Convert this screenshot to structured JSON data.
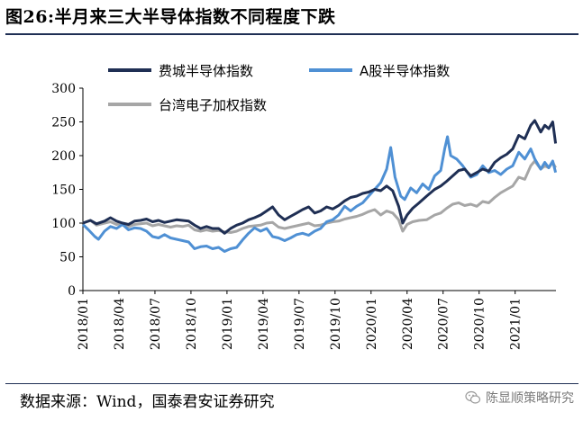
{
  "title": "图26:半月来三大半导体指数不同程度下跌",
  "source": "数据来源：Wind，国泰君安证券研究",
  "watermark": "陈显顺策略研究",
  "chart_data": {
    "type": "line",
    "title": "图26:半月来三大半导体指数不同程度下跌",
    "xlabel": "",
    "ylabel": "",
    "ylim": [
      0,
      300
    ],
    "yticks": [
      0,
      50,
      100,
      150,
      200,
      250,
      300
    ],
    "xlim": [
      "2018-01",
      "2021-04.5"
    ],
    "xticks": [
      "2018/01",
      "2018/04",
      "2018/07",
      "2018/10",
      "2019/01",
      "2019/04",
      "2019/07",
      "2019/10",
      "2020/01",
      "2020/04",
      "2020/07",
      "2020/10",
      "2021/01"
    ],
    "grid": false,
    "legend": "top",
    "series": [
      {
        "name": "费城半导体指数",
        "color": "#1f2f54",
        "points": [
          [
            "2018-01-01",
            100
          ],
          [
            "2018-01-20",
            104
          ],
          [
            "2018-02-05",
            99
          ],
          [
            "2018-02-25",
            103
          ],
          [
            "2018-03-10",
            108
          ],
          [
            "2018-03-25",
            103
          ],
          [
            "2018-04-10",
            100
          ],
          [
            "2018-04-25",
            98
          ],
          [
            "2018-05-10",
            103
          ],
          [
            "2018-05-25",
            104
          ],
          [
            "2018-06-10",
            106
          ],
          [
            "2018-06-25",
            102
          ],
          [
            "2018-07-10",
            104
          ],
          [
            "2018-07-25",
            101
          ],
          [
            "2018-08-10",
            103
          ],
          [
            "2018-08-25",
            105
          ],
          [
            "2018-09-10",
            104
          ],
          [
            "2018-09-25",
            103
          ],
          [
            "2018-10-10",
            97
          ],
          [
            "2018-10-25",
            92
          ],
          [
            "2018-11-10",
            95
          ],
          [
            "2018-11-25",
            92
          ],
          [
            "2018-12-10",
            92
          ],
          [
            "2018-12-25",
            85
          ],
          [
            "2019-01-10",
            92
          ],
          [
            "2019-01-25",
            97
          ],
          [
            "2019-02-10",
            100
          ],
          [
            "2019-02-25",
            105
          ],
          [
            "2019-03-10",
            108
          ],
          [
            "2019-03-25",
            112
          ],
          [
            "2019-04-10",
            118
          ],
          [
            "2019-04-25",
            124
          ],
          [
            "2019-05-10",
            112
          ],
          [
            "2019-05-25",
            105
          ],
          [
            "2019-06-10",
            110
          ],
          [
            "2019-06-25",
            115
          ],
          [
            "2019-07-10",
            120
          ],
          [
            "2019-07-25",
            124
          ],
          [
            "2019-08-10",
            115
          ],
          [
            "2019-08-25",
            118
          ],
          [
            "2019-09-10",
            124
          ],
          [
            "2019-09-25",
            121
          ],
          [
            "2019-10-10",
            126
          ],
          [
            "2019-10-25",
            133
          ],
          [
            "2019-11-10",
            138
          ],
          [
            "2019-11-25",
            140
          ],
          [
            "2019-12-10",
            144
          ],
          [
            "2019-12-25",
            146
          ],
          [
            "2020-01-10",
            150
          ],
          [
            "2020-01-25",
            148
          ],
          [
            "2020-02-10",
            155
          ],
          [
            "2020-02-25",
            148
          ],
          [
            "2020-03-10",
            125
          ],
          [
            "2020-03-20",
            100
          ],
          [
            "2020-04-01",
            112
          ],
          [
            "2020-04-15",
            122
          ],
          [
            "2020-05-01",
            130
          ],
          [
            "2020-05-20",
            140
          ],
          [
            "2020-06-10",
            150
          ],
          [
            "2020-06-25",
            155
          ],
          [
            "2020-07-10",
            162
          ],
          [
            "2020-07-25",
            170
          ],
          [
            "2020-08-10",
            178
          ],
          [
            "2020-08-25",
            180
          ],
          [
            "2020-09-10",
            170
          ],
          [
            "2020-09-25",
            175
          ],
          [
            "2020-10-10",
            180
          ],
          [
            "2020-10-25",
            177
          ],
          [
            "2020-11-10",
            190
          ],
          [
            "2020-11-25",
            197
          ],
          [
            "2020-12-10",
            202
          ],
          [
            "2020-12-25",
            210
          ],
          [
            "2021-01-10",
            230
          ],
          [
            "2021-01-25",
            225
          ],
          [
            "2021-02-10",
            245
          ],
          [
            "2021-02-20",
            252
          ],
          [
            "2021-03-05",
            235
          ],
          [
            "2021-03-15",
            245
          ],
          [
            "2021-03-25",
            240
          ],
          [
            "2021-04-05",
            250
          ],
          [
            "2021-04-12",
            218
          ]
        ]
      },
      {
        "name": "A股半导体指数",
        "color": "#4f90d4",
        "points": [
          [
            "2018-01-01",
            98
          ],
          [
            "2018-01-15",
            90
          ],
          [
            "2018-02-01",
            80
          ],
          [
            "2018-02-10",
            76
          ],
          [
            "2018-02-25",
            88
          ],
          [
            "2018-03-10",
            95
          ],
          [
            "2018-03-25",
            92
          ],
          [
            "2018-04-10",
            98
          ],
          [
            "2018-04-25",
            90
          ],
          [
            "2018-05-10",
            93
          ],
          [
            "2018-05-25",
            92
          ],
          [
            "2018-06-10",
            88
          ],
          [
            "2018-06-25",
            80
          ],
          [
            "2018-07-10",
            78
          ],
          [
            "2018-07-25",
            83
          ],
          [
            "2018-08-10",
            78
          ],
          [
            "2018-08-25",
            76
          ],
          [
            "2018-09-10",
            74
          ],
          [
            "2018-09-25",
            72
          ],
          [
            "2018-10-10",
            62
          ],
          [
            "2018-10-25",
            65
          ],
          [
            "2018-11-10",
            66
          ],
          [
            "2018-11-25",
            62
          ],
          [
            "2018-12-10",
            64
          ],
          [
            "2018-12-25",
            58
          ],
          [
            "2019-01-10",
            62
          ],
          [
            "2019-01-25",
            64
          ],
          [
            "2019-02-10",
            75
          ],
          [
            "2019-02-25",
            85
          ],
          [
            "2019-03-10",
            93
          ],
          [
            "2019-03-25",
            88
          ],
          [
            "2019-04-10",
            92
          ],
          [
            "2019-04-25",
            80
          ],
          [
            "2019-05-10",
            78
          ],
          [
            "2019-05-25",
            74
          ],
          [
            "2019-06-10",
            78
          ],
          [
            "2019-06-25",
            83
          ],
          [
            "2019-07-10",
            85
          ],
          [
            "2019-07-25",
            82
          ],
          [
            "2019-08-10",
            88
          ],
          [
            "2019-08-25",
            92
          ],
          [
            "2019-09-10",
            102
          ],
          [
            "2019-09-25",
            105
          ],
          [
            "2019-10-10",
            112
          ],
          [
            "2019-10-25",
            125
          ],
          [
            "2019-11-10",
            118
          ],
          [
            "2019-11-25",
            125
          ],
          [
            "2019-12-10",
            130
          ],
          [
            "2019-12-25",
            140
          ],
          [
            "2020-01-10",
            150
          ],
          [
            "2020-01-25",
            160
          ],
          [
            "2020-02-10",
            180
          ],
          [
            "2020-02-20",
            212
          ],
          [
            "2020-03-01",
            168
          ],
          [
            "2020-03-15",
            140
          ],
          [
            "2020-03-25",
            135
          ],
          [
            "2020-04-10",
            152
          ],
          [
            "2020-04-25",
            145
          ],
          [
            "2020-05-10",
            158
          ],
          [
            "2020-05-25",
            150
          ],
          [
            "2020-06-10",
            170
          ],
          [
            "2020-06-25",
            178
          ],
          [
            "2020-07-05",
            210
          ],
          [
            "2020-07-12",
            228
          ],
          [
            "2020-07-20",
            200
          ],
          [
            "2020-08-05",
            195
          ],
          [
            "2020-08-20",
            185
          ],
          [
            "2020-09-10",
            168
          ],
          [
            "2020-09-25",
            172
          ],
          [
            "2020-10-10",
            185
          ],
          [
            "2020-10-25",
            175
          ],
          [
            "2020-11-10",
            178
          ],
          [
            "2020-11-25",
            172
          ],
          [
            "2020-12-10",
            180
          ],
          [
            "2020-12-25",
            185
          ],
          [
            "2021-01-10",
            205
          ],
          [
            "2021-01-25",
            195
          ],
          [
            "2021-02-10",
            210
          ],
          [
            "2021-02-20",
            195
          ],
          [
            "2021-03-05",
            180
          ],
          [
            "2021-03-15",
            190
          ],
          [
            "2021-03-25",
            182
          ],
          [
            "2021-04-05",
            192
          ],
          [
            "2021-04-12",
            175
          ]
        ]
      },
      {
        "name": "台湾电子加权指数",
        "color": "#a6a6a6",
        "points": [
          [
            "2018-01-01",
            100
          ],
          [
            "2018-01-20",
            104
          ],
          [
            "2018-02-05",
            97
          ],
          [
            "2018-02-25",
            100
          ],
          [
            "2018-03-10",
            102
          ],
          [
            "2018-03-25",
            98
          ],
          [
            "2018-04-10",
            100
          ],
          [
            "2018-04-25",
            95
          ],
          [
            "2018-05-10",
            98
          ],
          [
            "2018-05-25",
            99
          ],
          [
            "2018-06-10",
            100
          ],
          [
            "2018-06-25",
            96
          ],
          [
            "2018-07-10",
            98
          ],
          [
            "2018-07-25",
            96
          ],
          [
            "2018-08-10",
            94
          ],
          [
            "2018-08-25",
            96
          ],
          [
            "2018-09-10",
            95
          ],
          [
            "2018-09-25",
            97
          ],
          [
            "2018-10-10",
            90
          ],
          [
            "2018-10-25",
            88
          ],
          [
            "2018-11-10",
            90
          ],
          [
            "2018-11-25",
            88
          ],
          [
            "2018-12-10",
            89
          ],
          [
            "2018-12-25",
            87
          ],
          [
            "2019-01-10",
            86
          ],
          [
            "2019-01-25",
            88
          ],
          [
            "2019-02-10",
            92
          ],
          [
            "2019-02-25",
            95
          ],
          [
            "2019-03-10",
            96
          ],
          [
            "2019-03-25",
            97
          ],
          [
            "2019-04-10",
            100
          ],
          [
            "2019-04-25",
            101
          ],
          [
            "2019-05-10",
            94
          ],
          [
            "2019-05-25",
            92
          ],
          [
            "2019-06-10",
            94
          ],
          [
            "2019-06-25",
            96
          ],
          [
            "2019-07-10",
            98
          ],
          [
            "2019-07-25",
            100
          ],
          [
            "2019-08-10",
            96
          ],
          [
            "2019-08-25",
            97
          ],
          [
            "2019-09-10",
            100
          ],
          [
            "2019-09-25",
            102
          ],
          [
            "2019-10-10",
            103
          ],
          [
            "2019-10-25",
            106
          ],
          [
            "2019-11-10",
            108
          ],
          [
            "2019-11-25",
            110
          ],
          [
            "2019-12-10",
            113
          ],
          [
            "2019-12-25",
            117
          ],
          [
            "2020-01-10",
            120
          ],
          [
            "2020-01-25",
            112
          ],
          [
            "2020-02-10",
            118
          ],
          [
            "2020-02-25",
            115
          ],
          [
            "2020-03-10",
            105
          ],
          [
            "2020-03-20",
            88
          ],
          [
            "2020-04-01",
            98
          ],
          [
            "2020-04-15",
            102
          ],
          [
            "2020-05-01",
            104
          ],
          [
            "2020-05-20",
            105
          ],
          [
            "2020-06-10",
            112
          ],
          [
            "2020-06-25",
            115
          ],
          [
            "2020-07-10",
            122
          ],
          [
            "2020-07-25",
            128
          ],
          [
            "2020-08-10",
            130
          ],
          [
            "2020-08-25",
            126
          ],
          [
            "2020-09-10",
            128
          ],
          [
            "2020-09-25",
            125
          ],
          [
            "2020-10-10",
            132
          ],
          [
            "2020-10-25",
            130
          ],
          [
            "2020-11-10",
            138
          ],
          [
            "2020-11-25",
            145
          ],
          [
            "2020-12-10",
            150
          ],
          [
            "2020-12-25",
            155
          ],
          [
            "2021-01-10",
            168
          ],
          [
            "2021-01-25",
            165
          ],
          [
            "2021-02-10",
            185
          ],
          [
            "2021-02-20",
            192
          ],
          [
            "2021-03-05",
            180
          ],
          [
            "2021-03-15",
            185
          ],
          [
            "2021-03-25",
            182
          ],
          [
            "2021-04-05",
            190
          ],
          [
            "2021-04-12",
            182
          ]
        ]
      }
    ]
  }
}
